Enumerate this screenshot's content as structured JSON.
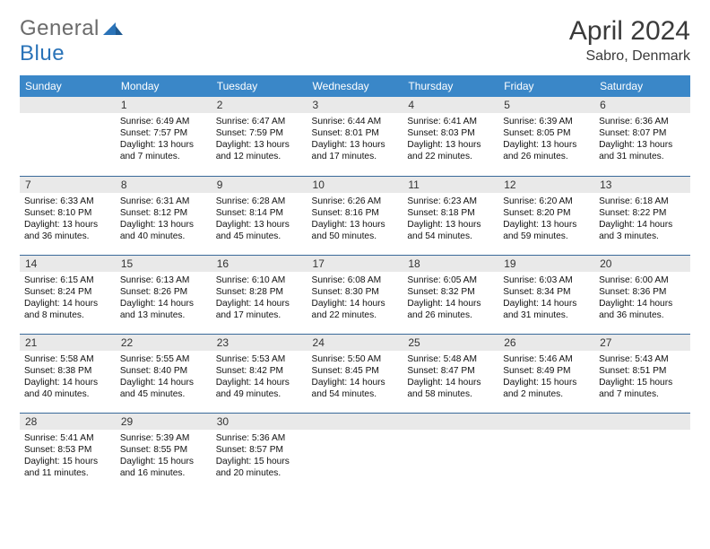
{
  "brand": {
    "w1": "General",
    "w2": "Blue"
  },
  "title": "April 2024",
  "location": "Sabro, Denmark",
  "colors": {
    "header_bg": "#3a87c8",
    "header_fg": "#ffffff",
    "daynum_bg": "#e9e9e9",
    "rule": "#3a6a9a",
    "logo_gray": "#6b6b6b",
    "logo_blue": "#2a73b8"
  },
  "dow": [
    "Sunday",
    "Monday",
    "Tuesday",
    "Wednesday",
    "Thursday",
    "Friday",
    "Saturday"
  ],
  "weeks": [
    [
      null,
      {
        "n": "1",
        "sr": "6:49 AM",
        "ss": "7:57 PM",
        "dl": "13 hours and 7 minutes."
      },
      {
        "n": "2",
        "sr": "6:47 AM",
        "ss": "7:59 PM",
        "dl": "13 hours and 12 minutes."
      },
      {
        "n": "3",
        "sr": "6:44 AM",
        "ss": "8:01 PM",
        "dl": "13 hours and 17 minutes."
      },
      {
        "n": "4",
        "sr": "6:41 AM",
        "ss": "8:03 PM",
        "dl": "13 hours and 22 minutes."
      },
      {
        "n": "5",
        "sr": "6:39 AM",
        "ss": "8:05 PM",
        "dl": "13 hours and 26 minutes."
      },
      {
        "n": "6",
        "sr": "6:36 AM",
        "ss": "8:07 PM",
        "dl": "13 hours and 31 minutes."
      }
    ],
    [
      {
        "n": "7",
        "sr": "6:33 AM",
        "ss": "8:10 PM",
        "dl": "13 hours and 36 minutes."
      },
      {
        "n": "8",
        "sr": "6:31 AM",
        "ss": "8:12 PM",
        "dl": "13 hours and 40 minutes."
      },
      {
        "n": "9",
        "sr": "6:28 AM",
        "ss": "8:14 PM",
        "dl": "13 hours and 45 minutes."
      },
      {
        "n": "10",
        "sr": "6:26 AM",
        "ss": "8:16 PM",
        "dl": "13 hours and 50 minutes."
      },
      {
        "n": "11",
        "sr": "6:23 AM",
        "ss": "8:18 PM",
        "dl": "13 hours and 54 minutes."
      },
      {
        "n": "12",
        "sr": "6:20 AM",
        "ss": "8:20 PM",
        "dl": "13 hours and 59 minutes."
      },
      {
        "n": "13",
        "sr": "6:18 AM",
        "ss": "8:22 PM",
        "dl": "14 hours and 3 minutes."
      }
    ],
    [
      {
        "n": "14",
        "sr": "6:15 AM",
        "ss": "8:24 PM",
        "dl": "14 hours and 8 minutes."
      },
      {
        "n": "15",
        "sr": "6:13 AM",
        "ss": "8:26 PM",
        "dl": "14 hours and 13 minutes."
      },
      {
        "n": "16",
        "sr": "6:10 AM",
        "ss": "8:28 PM",
        "dl": "14 hours and 17 minutes."
      },
      {
        "n": "17",
        "sr": "6:08 AM",
        "ss": "8:30 PM",
        "dl": "14 hours and 22 minutes."
      },
      {
        "n": "18",
        "sr": "6:05 AM",
        "ss": "8:32 PM",
        "dl": "14 hours and 26 minutes."
      },
      {
        "n": "19",
        "sr": "6:03 AM",
        "ss": "8:34 PM",
        "dl": "14 hours and 31 minutes."
      },
      {
        "n": "20",
        "sr": "6:00 AM",
        "ss": "8:36 PM",
        "dl": "14 hours and 36 minutes."
      }
    ],
    [
      {
        "n": "21",
        "sr": "5:58 AM",
        "ss": "8:38 PM",
        "dl": "14 hours and 40 minutes."
      },
      {
        "n": "22",
        "sr": "5:55 AM",
        "ss": "8:40 PM",
        "dl": "14 hours and 45 minutes."
      },
      {
        "n": "23",
        "sr": "5:53 AM",
        "ss": "8:42 PM",
        "dl": "14 hours and 49 minutes."
      },
      {
        "n": "24",
        "sr": "5:50 AM",
        "ss": "8:45 PM",
        "dl": "14 hours and 54 minutes."
      },
      {
        "n": "25",
        "sr": "5:48 AM",
        "ss": "8:47 PM",
        "dl": "14 hours and 58 minutes."
      },
      {
        "n": "26",
        "sr": "5:46 AM",
        "ss": "8:49 PM",
        "dl": "15 hours and 2 minutes."
      },
      {
        "n": "27",
        "sr": "5:43 AM",
        "ss": "8:51 PM",
        "dl": "15 hours and 7 minutes."
      }
    ],
    [
      {
        "n": "28",
        "sr": "5:41 AM",
        "ss": "8:53 PM",
        "dl": "15 hours and 11 minutes."
      },
      {
        "n": "29",
        "sr": "5:39 AM",
        "ss": "8:55 PM",
        "dl": "15 hours and 16 minutes."
      },
      {
        "n": "30",
        "sr": "5:36 AM",
        "ss": "8:57 PM",
        "dl": "15 hours and 20 minutes."
      },
      null,
      null,
      null,
      null
    ]
  ],
  "labels": {
    "sr": "Sunrise: ",
    "ss": "Sunset: ",
    "dl": "Daylight: "
  }
}
